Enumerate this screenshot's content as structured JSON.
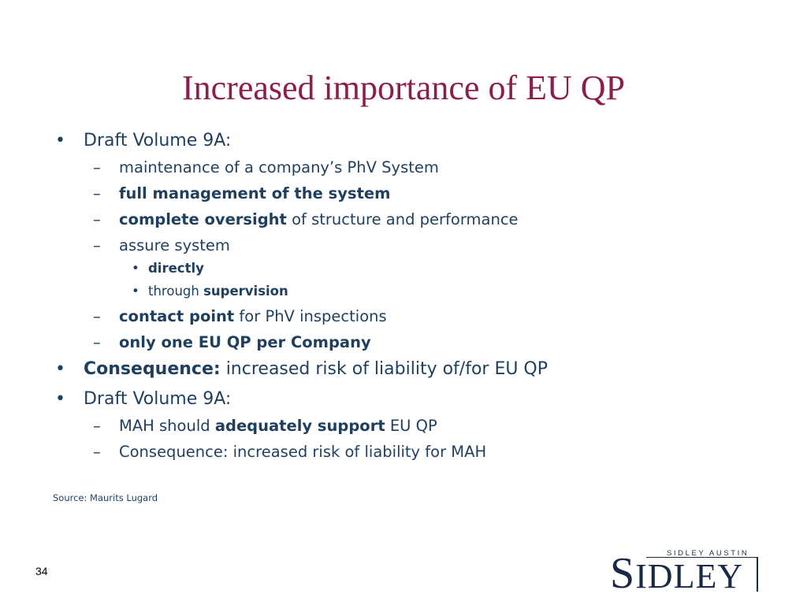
{
  "title": "Increased importance of EU QP",
  "bullets": {
    "b1": {
      "marker": "•",
      "text": "Draft Volume 9A:"
    },
    "b1_sub1": {
      "marker": "–",
      "text": "maintenance of a company’s PhV System"
    },
    "b1_sub2": {
      "marker": "–",
      "bold": "full management of the system"
    },
    "b1_sub3": {
      "marker": "–",
      "bold": "complete oversight",
      "text": " of structure and performance"
    },
    "b1_sub4": {
      "marker": "–",
      "text": "assure system"
    },
    "b1_sub4_a": {
      "marker": "•",
      "bold": "directly"
    },
    "b1_sub4_b": {
      "marker": "•",
      "text": "through ",
      "bold": "supervision"
    },
    "b1_sub5": {
      "marker": "–",
      "bold": "contact point",
      "text": " for PhV inspections"
    },
    "b1_sub6": {
      "marker": "–",
      "bold": "only one EU QP per Company"
    },
    "b2": {
      "marker": "•",
      "bold": "Consequence:",
      "text": " increased risk of liability of/for EU QP"
    },
    "b3": {
      "marker": "•",
      "text": "Draft Volume 9A:"
    },
    "b3_sub1": {
      "marker": "–",
      "text_before": "MAH should ",
      "bold": "adequately support",
      "text_after": " EU QP"
    },
    "b3_sub2": {
      "marker": "–",
      "text": "Consequence: increased risk of liability for MAH"
    }
  },
  "source": "Source:  Maurits Lugard",
  "page_number": "34",
  "logo": {
    "top_text": "SIDLEY AUSTIN",
    "cap_letter": "S",
    "rest_letters": "IDLEY"
  },
  "colors": {
    "title": "#8b1e4a",
    "body": "#1f3f5f",
    "logo": "#1a2a44"
  }
}
